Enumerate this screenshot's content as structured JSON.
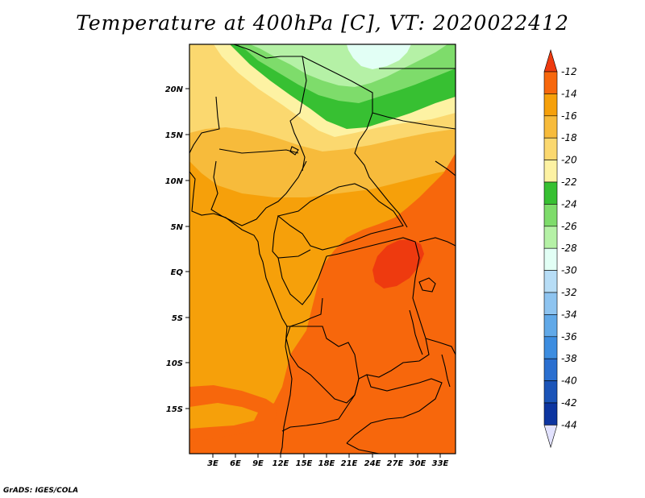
{
  "title": "Temperature at 400hPa [C], VT: 2020022412",
  "credit": "GrADS: IGES/COLA",
  "map": {
    "projection": "latlon",
    "lon_labels": [
      "3E",
      "6E",
      "9E",
      "12E",
      "15E",
      "18E",
      "21E",
      "24E",
      "27E",
      "30E",
      "33E"
    ],
    "lat_labels": [
      "20N",
      "15N",
      "10N",
      "5N",
      "EQ",
      "5S",
      "10S",
      "15S"
    ]
  },
  "colorbar": {
    "labels": [
      "-12",
      "-14",
      "-16",
      "-18",
      "-20",
      "-22",
      "-24",
      "-26",
      "-28",
      "-30",
      "-32",
      "-34",
      "-36",
      "-38",
      "-40",
      "-42",
      "-44"
    ],
    "colors": {
      "warmest": "#ee3a0f",
      "m12_14": "#f7670c",
      "m14_16": "#f6a00a",
      "m16_18": "#f7bb3b",
      "m18_20": "#fbd86f",
      "m20_22": "#fdf2a3",
      "m22_24": "#37c032",
      "m24_26": "#7edc6b",
      "m26_28": "#b5f1a6",
      "m28_30": "#e2fff5",
      "m30_32": "#b7ddf6",
      "m32_34": "#8ec4f0",
      "m34_36": "#61a9e8",
      "m36_38": "#3d8de0",
      "m38_40": "#2a6fd0",
      "m40_42": "#1b54b8",
      "m42_44": "#0d35a0",
      "coldest_box": "#0b1272",
      "coldest_tip": "#e2e2ff"
    }
  }
}
